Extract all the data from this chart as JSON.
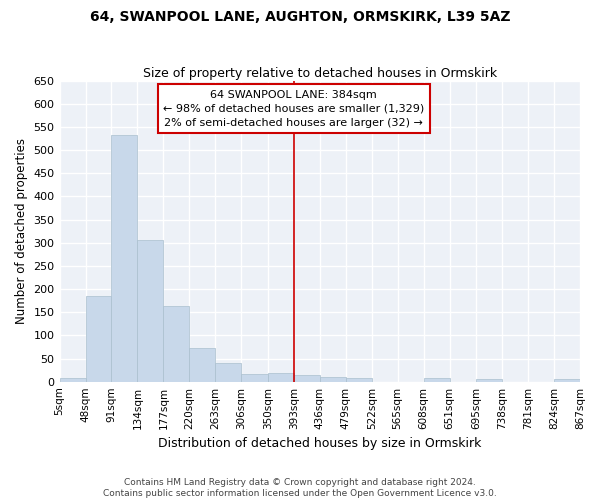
{
  "title": "64, SWANPOOL LANE, AUGHTON, ORMSKIRK, L39 5AZ",
  "subtitle": "Size of property relative to detached houses in Ormskirk",
  "xlabel": "Distribution of detached houses by size in Ormskirk",
  "ylabel": "Number of detached properties",
  "bar_color": "#c8d8ea",
  "bar_edge_color": "#aabfce",
  "background_color": "#edf1f7",
  "grid_color": "#ffffff",
  "annotation_text": "64 SWANPOOL LANE: 384sqm\n← 98% of detached houses are smaller (1,329)\n2% of semi-detached houses are larger (32) →",
  "vline_x": 393,
  "vline_color": "#cc0000",
  "bin_edges": [
    5,
    48,
    91,
    134,
    177,
    220,
    263,
    306,
    350,
    393,
    436,
    479,
    522,
    565,
    608,
    651,
    695,
    738,
    781,
    824,
    867
  ],
  "bin_labels": [
    "5sqm",
    "48sqm",
    "91sqm",
    "134sqm",
    "177sqm",
    "220sqm",
    "263sqm",
    "306sqm",
    "350sqm",
    "393sqm",
    "436sqm",
    "479sqm",
    "522sqm",
    "565sqm",
    "608sqm",
    "651sqm",
    "695sqm",
    "738sqm",
    "781sqm",
    "824sqm",
    "867sqm"
  ],
  "bar_heights": [
    9,
    185,
    533,
    305,
    163,
    73,
    41,
    16,
    19,
    15,
    11,
    9,
    0,
    0,
    7,
    0,
    5,
    0,
    0,
    5
  ],
  "footer_text": "Contains HM Land Registry data © Crown copyright and database right 2024.\nContains public sector information licensed under the Open Government Licence v3.0.",
  "ylim": [
    0,
    650
  ],
  "yticks": [
    0,
    50,
    100,
    150,
    200,
    250,
    300,
    350,
    400,
    450,
    500,
    550,
    600,
    650
  ]
}
